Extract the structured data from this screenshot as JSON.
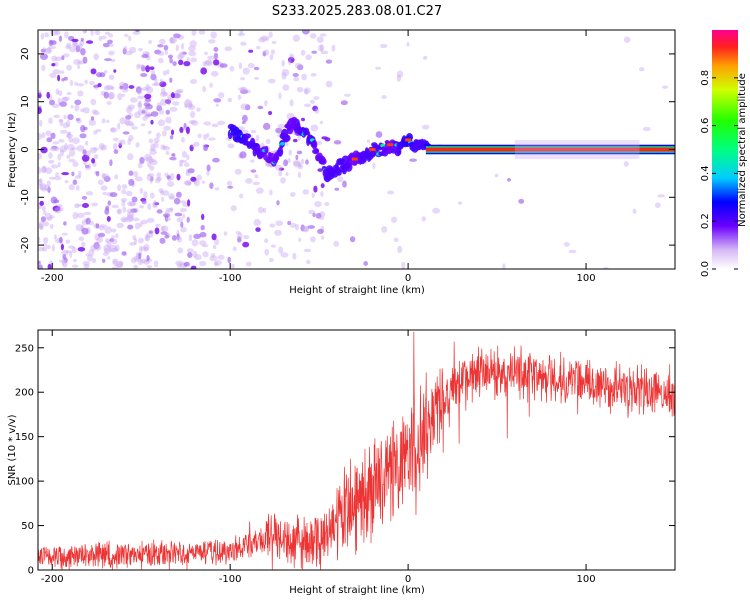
{
  "title": "S233.2025.283.08.01.C27",
  "chart_data": [
    {
      "type": "heatmap",
      "name": "spectrogram",
      "xlabel": "Height of straight line (km)",
      "ylabel": "Frequency (Hz)",
      "xlim": [
        -208,
        150
      ],
      "ylim": [
        -25,
        25
      ],
      "xticks": [
        -200,
        -100,
        0,
        100
      ],
      "xtick_labels": [
        "-200",
        "-100",
        "0",
        "100"
      ],
      "yticks": [
        20,
        10,
        0,
        -10,
        -20
      ],
      "ytick_labels": [
        "20",
        "10",
        "0",
        "-10",
        "-20"
      ],
      "ridge": {
        "x": [
          -100,
          -95,
          -90,
          -85,
          -80,
          -75,
          -70,
          -65,
          -60,
          -55,
          -50,
          -45,
          -40,
          -35,
          -30,
          -25,
          -20,
          -15,
          -10,
          -5,
          0,
          5,
          10,
          20,
          40,
          60,
          80,
          100,
          120,
          150
        ],
        "freq": [
          4,
          3,
          2,
          0,
          -1,
          -2,
          2,
          6,
          4,
          2,
          -2,
          -5,
          -4,
          -3,
          -2,
          -2,
          0,
          0,
          1,
          0,
          2,
          1,
          1,
          0.5,
          0.5,
          0.4,
          0.3,
          0.3,
          0.3,
          0.3
        ],
        "amplitude": [
          0.3,
          0.35,
          0.3,
          0.3,
          0.25,
          0.25,
          0.3,
          0.25,
          0.3,
          0.3,
          0.25,
          0.3,
          0.3,
          0.3,
          0.25,
          0.3,
          0.3,
          0.3,
          0.25,
          0.3,
          0.35,
          0.3,
          0.3,
          0.95,
          1.0,
          0.95,
          0.9,
          0.95,
          0.9,
          0.95
        ]
      },
      "colorbar": {
        "label": "Normalized spectral amplitude",
        "ticks": [
          0.0,
          0.2,
          0.4,
          0.6,
          0.8
        ],
        "tick_labels": [
          "0.0",
          "0.2",
          "0.4",
          "0.6",
          "0.8"
        ],
        "range": [
          0,
          1
        ]
      }
    },
    {
      "type": "line",
      "name": "snr",
      "xlabel": "Height of straight line (km)",
      "ylabel": "SNR (10 * v/v)",
      "xlim": [
        -208,
        150
      ],
      "ylim": [
        0,
        270
      ],
      "xticks": [
        -200,
        -100,
        0,
        100
      ],
      "xtick_labels": [
        "-200",
        "-100",
        "0",
        "100"
      ],
      "yticks": [
        0,
        50,
        100,
        150,
        200,
        250
      ],
      "ytick_labels": [
        "0",
        "50",
        "100",
        "150",
        "200",
        "250"
      ],
      "color": "#ee3333",
      "trend": {
        "x": [
          -208,
          -150,
          -100,
          -80,
          -60,
          -50,
          -40,
          -30,
          -20,
          -10,
          0,
          10,
          20,
          30,
          40,
          60,
          80,
          100,
          120,
          150
        ],
        "y": [
          15,
          17,
          22,
          35,
          30,
          30,
          50,
          70,
          90,
          110,
          130,
          160,
          195,
          215,
          222,
          222,
          215,
          210,
          205,
          195
        ]
      }
    }
  ]
}
